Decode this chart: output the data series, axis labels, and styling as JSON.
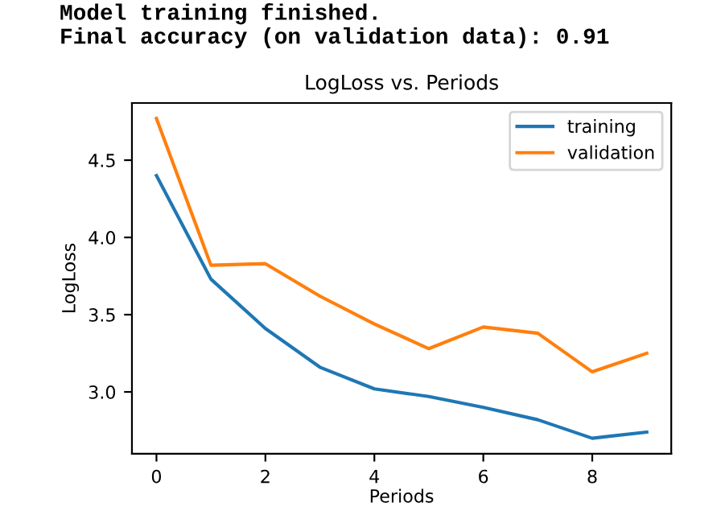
{
  "chart_data": {
    "type": "line",
    "title": "LogLoss vs. Periods",
    "xlabel": "Periods",
    "ylabel": "LogLoss",
    "annotations": [
      "Model training finished.",
      "Final accuracy (on validation data): 0.91"
    ],
    "x": [
      0,
      1,
      2,
      3,
      4,
      5,
      6,
      7,
      8,
      9
    ],
    "series": [
      {
        "name": "training",
        "color": "#1f77b4",
        "values": [
          4.4,
          3.73,
          3.41,
          3.16,
          3.02,
          2.97,
          2.9,
          2.82,
          2.7,
          2.74
        ]
      },
      {
        "name": "validation",
        "color": "#ff7f0e",
        "values": [
          4.77,
          3.82,
          3.83,
          3.62,
          3.44,
          3.28,
          3.42,
          3.38,
          3.13,
          3.25
        ]
      }
    ],
    "xlim": [
      -0.45,
      9.45
    ],
    "ylim": [
      2.6,
      4.87
    ],
    "xticks": [
      0,
      2,
      4,
      6,
      8
    ],
    "yticks": [
      {
        "value": 3,
        "label": "3.0"
      },
      3.5,
      {
        "value": 4,
        "label": "4.0"
      },
      4.5
    ],
    "grid": false,
    "legend": "top right",
    "marker": "none",
    "line_style": "solid"
  }
}
